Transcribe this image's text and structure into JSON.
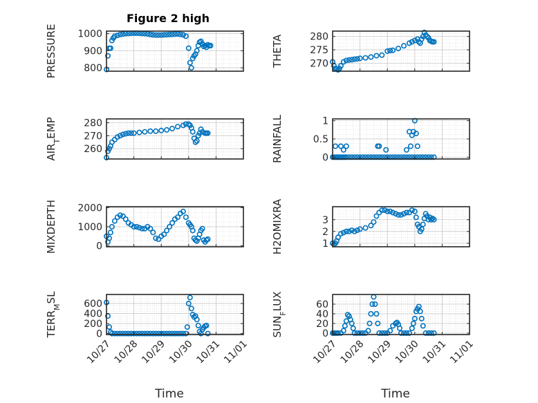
{
  "figure": {
    "title": "Figure 2 high",
    "marker_color": "#0072BD"
  },
  "chart_data": [
    {
      "type": "scatter",
      "ylabel": "PRESSURE",
      "xlabel": "",
      "title": "Figure 2 high",
      "xlim": [
        "10/27",
        "11/01"
      ],
      "ylim": [
        780,
        1015
      ],
      "yticks": [
        800,
        900,
        1000
      ],
      "xticks": [],
      "x_days": [
        0.0,
        0.05,
        0.1,
        0.15,
        0.2,
        0.25,
        0.3,
        0.4,
        0.5,
        0.6,
        0.7,
        0.8,
        0.9,
        1.0,
        1.1,
        1.2,
        1.3,
        1.4,
        1.5,
        1.6,
        1.7,
        1.8,
        1.9,
        2.0,
        2.1,
        2.2,
        2.3,
        2.4,
        2.5,
        2.6,
        2.7,
        2.8,
        2.9,
        3.0,
        3.05,
        3.1,
        3.15,
        3.2,
        3.25,
        3.3,
        3.35,
        3.4,
        3.45,
        3.5,
        3.55,
        3.6,
        3.65,
        3.7,
        3.75,
        3.8
      ],
      "values": [
        790,
        870,
        915,
        915,
        960,
        975,
        985,
        990,
        995,
        997,
        1000,
        1001,
        1002,
        1003,
        1003,
        1002,
        1001,
        1000,
        998,
        995,
        993,
        992,
        992,
        992,
        993,
        994,
        995,
        996,
        997,
        998,
        996,
        993,
        985,
        915,
        830,
        800,
        855,
        870,
        880,
        900,
        930,
        950,
        955,
        940,
        925,
        930,
        920,
        935,
        930,
        930
      ]
    },
    {
      "type": "scatter",
      "ylabel": "THETA",
      "xlabel": "",
      "xlim": [
        "10/27",
        "11/01"
      ],
      "ylim": [
        267,
        282
      ],
      "yticks": [
        270,
        275,
        280
      ],
      "xticks": [],
      "x_days": [
        0.0,
        0.05,
        0.1,
        0.15,
        0.2,
        0.25,
        0.3,
        0.4,
        0.5,
        0.6,
        0.7,
        0.8,
        0.9,
        1.0,
        1.2,
        1.4,
        1.6,
        1.8,
        2.0,
        2.1,
        2.2,
        2.4,
        2.6,
        2.8,
        2.9,
        3.0,
        3.1,
        3.15,
        3.2,
        3.25,
        3.3,
        3.35,
        3.4,
        3.45,
        3.5,
        3.55,
        3.6,
        3.65,
        3.7
      ],
      "values": [
        270.5,
        269,
        268,
        267.8,
        267.5,
        268,
        269,
        270.5,
        271,
        271.2,
        271.3,
        271.5,
        271.6,
        271.8,
        272,
        272.3,
        272.8,
        273,
        274.5,
        274.7,
        274.8,
        275.5,
        276.5,
        277.5,
        278,
        278.5,
        279,
        278,
        277.5,
        279,
        280,
        281.5,
        280.5,
        280,
        279.5,
        278.5,
        278.2,
        278,
        278
      ]
    },
    {
      "type": "scatter",
      "ylabel": "AIR_TEMP",
      "xlabel": "",
      "xlim": [
        "10/27",
        "11/01"
      ],
      "ylim": [
        252,
        283
      ],
      "yticks": [
        260,
        270,
        280
      ],
      "xticks": [],
      "x_days": [
        0.0,
        0.05,
        0.1,
        0.15,
        0.2,
        0.3,
        0.4,
        0.5,
        0.6,
        0.7,
        0.8,
        0.9,
        1.0,
        1.2,
        1.4,
        1.6,
        1.8,
        2.0,
        2.2,
        2.4,
        2.6,
        2.8,
        2.9,
        3.0,
        3.05,
        3.1,
        3.15,
        3.2,
        3.25,
        3.3,
        3.35,
        3.4,
        3.45,
        3.5,
        3.6,
        3.65,
        3.7
      ],
      "values": [
        253,
        258,
        260,
        262,
        265,
        267,
        269,
        270,
        271,
        271.5,
        272,
        272,
        272,
        272.5,
        273,
        273.5,
        273.5,
        274,
        274.5,
        275.5,
        277,
        278,
        279,
        279,
        278,
        276,
        273,
        268,
        265,
        266,
        270,
        272,
        275,
        273,
        272,
        272,
        272
      ]
    },
    {
      "type": "scatter",
      "ylabel": "RAINFALL",
      "xlabel": "",
      "xlim": [
        "10/27",
        "11/01"
      ],
      "ylim": [
        -0.05,
        1.05
      ],
      "yticks": [
        0,
        0.5,
        1
      ],
      "xticks": [],
      "x_days": [
        0.0,
        0.05,
        0.1,
        0.15,
        0.2,
        0.25,
        0.3,
        0.35,
        0.4,
        0.45,
        0.5,
        0.6,
        0.7,
        0.8,
        0.9,
        1.0,
        1.1,
        1.2,
        1.3,
        1.4,
        1.5,
        1.6,
        1.7,
        1.8,
        1.9,
        2.0,
        2.1,
        2.2,
        2.3,
        2.4,
        2.5,
        2.6,
        2.7,
        2.8,
        2.9,
        3.0,
        3.1,
        3.2,
        3.3,
        3.4,
        3.5,
        3.6,
        3.7,
        0.1,
        0.3,
        0.4,
        0.5,
        1.65,
        1.7,
        1.95,
        2.7,
        2.8,
        2.85,
        2.9,
        2.95,
        3.0,
        3.05,
        3.1
      ],
      "values": [
        0,
        0,
        0,
        0,
        0,
        0,
        0,
        0,
        0,
        0,
        0,
        0,
        0,
        0,
        0,
        0,
        0,
        0,
        0,
        0,
        0,
        0,
        0,
        0,
        0,
        0,
        0,
        0,
        0,
        0,
        0,
        0,
        0,
        0,
        0,
        0,
        0,
        0,
        0,
        0,
        0,
        0,
        0,
        0.3,
        0.3,
        0.2,
        0.3,
        0.3,
        0.3,
        0.2,
        0.2,
        0.7,
        0.3,
        0.6,
        0.7,
        1.0,
        0.65,
        0.3
      ]
    },
    {
      "type": "scatter",
      "ylabel": "MIXDEPTH",
      "xlabel": "",
      "xlim": [
        "10/27",
        "11/01"
      ],
      "ylim": [
        -50,
        2050
      ],
      "yticks": [
        0,
        1000,
        2000
      ],
      "xticks": [],
      "x_days": [
        0.0,
        0.05,
        0.1,
        0.15,
        0.2,
        0.3,
        0.4,
        0.5,
        0.6,
        0.7,
        0.8,
        0.9,
        1.0,
        1.1,
        1.2,
        1.3,
        1.4,
        1.5,
        1.6,
        1.7,
        1.8,
        1.9,
        2.0,
        2.1,
        2.2,
        2.3,
        2.4,
        2.5,
        2.6,
        2.7,
        2.8,
        2.9,
        3.0,
        3.05,
        3.1,
        3.15,
        3.2,
        3.25,
        3.3,
        3.35,
        3.4,
        3.45,
        3.5,
        3.55,
        3.6,
        3.65,
        3.7
      ],
      "values": [
        500,
        200,
        400,
        700,
        1000,
        1300,
        1500,
        1600,
        1550,
        1400,
        1200,
        1100,
        1000,
        1000,
        950,
        900,
        900,
        1000,
        900,
        700,
        400,
        350,
        500,
        600,
        800,
        1000,
        1200,
        1400,
        1500,
        1700,
        1800,
        1500,
        1200,
        1100,
        1000,
        800,
        400,
        300,
        250,
        400,
        600,
        800,
        900,
        300,
        200,
        300,
        350
      ]
    },
    {
      "type": "scatter",
      "ylabel": "H2OMIXRA",
      "xlabel": "",
      "xlim": [
        "10/27",
        "11/01"
      ],
      "ylim": [
        0.7,
        4.1
      ],
      "yticks": [
        1,
        2,
        3
      ],
      "xticks": [],
      "x_days": [
        0.0,
        0.05,
        0.1,
        0.15,
        0.2,
        0.3,
        0.4,
        0.5,
        0.6,
        0.7,
        0.8,
        0.9,
        1.0,
        1.2,
        1.4,
        1.5,
        1.6,
        1.7,
        1.8,
        1.9,
        2.0,
        2.1,
        2.2,
        2.3,
        2.4,
        2.5,
        2.6,
        2.7,
        2.8,
        2.9,
        3.0,
        3.05,
        3.1,
        3.15,
        3.2,
        3.25,
        3.3,
        3.35,
        3.4,
        3.45,
        3.5,
        3.55,
        3.6,
        3.65,
        3.7
      ],
      "values": [
        1.0,
        0.9,
        1.0,
        1.2,
        1.5,
        1.8,
        1.9,
        2.0,
        2.0,
        2.1,
        2.0,
        2.1,
        2.2,
        2.3,
        2.5,
        2.8,
        3.3,
        3.6,
        3.8,
        3.8,
        3.7,
        3.7,
        3.6,
        3.5,
        3.4,
        3.4,
        3.5,
        3.6,
        3.6,
        3.8,
        3.7,
        3.2,
        2.6,
        2.4,
        2.0,
        2.2,
        2.6,
        3.1,
        3.5,
        3.3,
        3.0,
        3.2,
        3.0,
        3.1,
        3.0
      ]
    },
    {
      "type": "scatter",
      "ylabel": "TERR_MSL",
      "xlabel": "Time",
      "xlim": [
        "10/27",
        "11/01"
      ],
      "ylim": [
        -20,
        780
      ],
      "yticks": [
        0,
        200,
        400,
        600
      ],
      "xticks": [
        "10/27",
        "10/28",
        "10/29",
        "10/30",
        "10/31",
        "11/01"
      ],
      "x_days": [
        0.0,
        0.05,
        0.1,
        0.15,
        0.2,
        0.3,
        0.4,
        0.5,
        0.6,
        0.7,
        0.8,
        0.9,
        1.0,
        1.1,
        1.2,
        1.3,
        1.4,
        1.5,
        1.6,
        1.7,
        1.8,
        1.9,
        2.0,
        2.1,
        2.2,
        2.3,
        2.4,
        2.5,
        2.6,
        2.7,
        2.8,
        2.9,
        2.95,
        3.0,
        3.05,
        3.1,
        3.15,
        3.2,
        3.25,
        3.3,
        3.35,
        3.4,
        3.45,
        3.5,
        3.55,
        3.6,
        3.65,
        3.7
      ],
      "values": [
        620,
        350,
        130,
        30,
        0,
        0,
        0,
        0,
        0,
        0,
        0,
        0,
        0,
        0,
        0,
        0,
        0,
        0,
        0,
        0,
        0,
        0,
        0,
        0,
        0,
        0,
        0,
        0,
        0,
        0,
        0,
        0,
        130,
        600,
        720,
        500,
        380,
        330,
        350,
        280,
        160,
        40,
        0,
        80,
        120,
        150,
        160,
        0
      ]
    },
    {
      "type": "scatter",
      "ylabel": "SUN_FLUX",
      "xlabel": "Time",
      "xlim": [
        "10/27",
        "11/01"
      ],
      "ylim": [
        -3,
        80
      ],
      "yticks": [
        0,
        20,
        40,
        60
      ],
      "xticks": [
        "10/27",
        "10/28",
        "10/29",
        "10/30",
        "10/31",
        "11/01"
      ],
      "x_days": [
        0.0,
        0.05,
        0.1,
        0.15,
        0.2,
        0.3,
        0.4,
        0.45,
        0.5,
        0.55,
        0.6,
        0.65,
        0.7,
        0.75,
        0.8,
        0.9,
        1.0,
        1.1,
        1.2,
        1.3,
        1.35,
        1.4,
        1.45,
        1.5,
        1.55,
        1.6,
        1.65,
        1.7,
        1.8,
        1.9,
        2.0,
        2.1,
        2.2,
        2.3,
        2.35,
        2.4,
        2.45,
        2.5,
        2.6,
        2.7,
        2.8,
        2.9,
        2.95,
        3.0,
        3.05,
        3.1,
        3.15,
        3.2,
        3.25,
        3.3,
        3.4,
        3.5,
        3.6,
        3.7
      ],
      "values": [
        0,
        0,
        0,
        0,
        0,
        0,
        5,
        15,
        25,
        38,
        35,
        28,
        20,
        10,
        0,
        0,
        0,
        0,
        0,
        5,
        20,
        40,
        60,
        75,
        60,
        40,
        20,
        0,
        0,
        0,
        0,
        5,
        15,
        20,
        22,
        18,
        10,
        0,
        0,
        0,
        0,
        10,
        20,
        30,
        45,
        50,
        55,
        45,
        30,
        15,
        0,
        0,
        0,
        0
      ]
    }
  ]
}
